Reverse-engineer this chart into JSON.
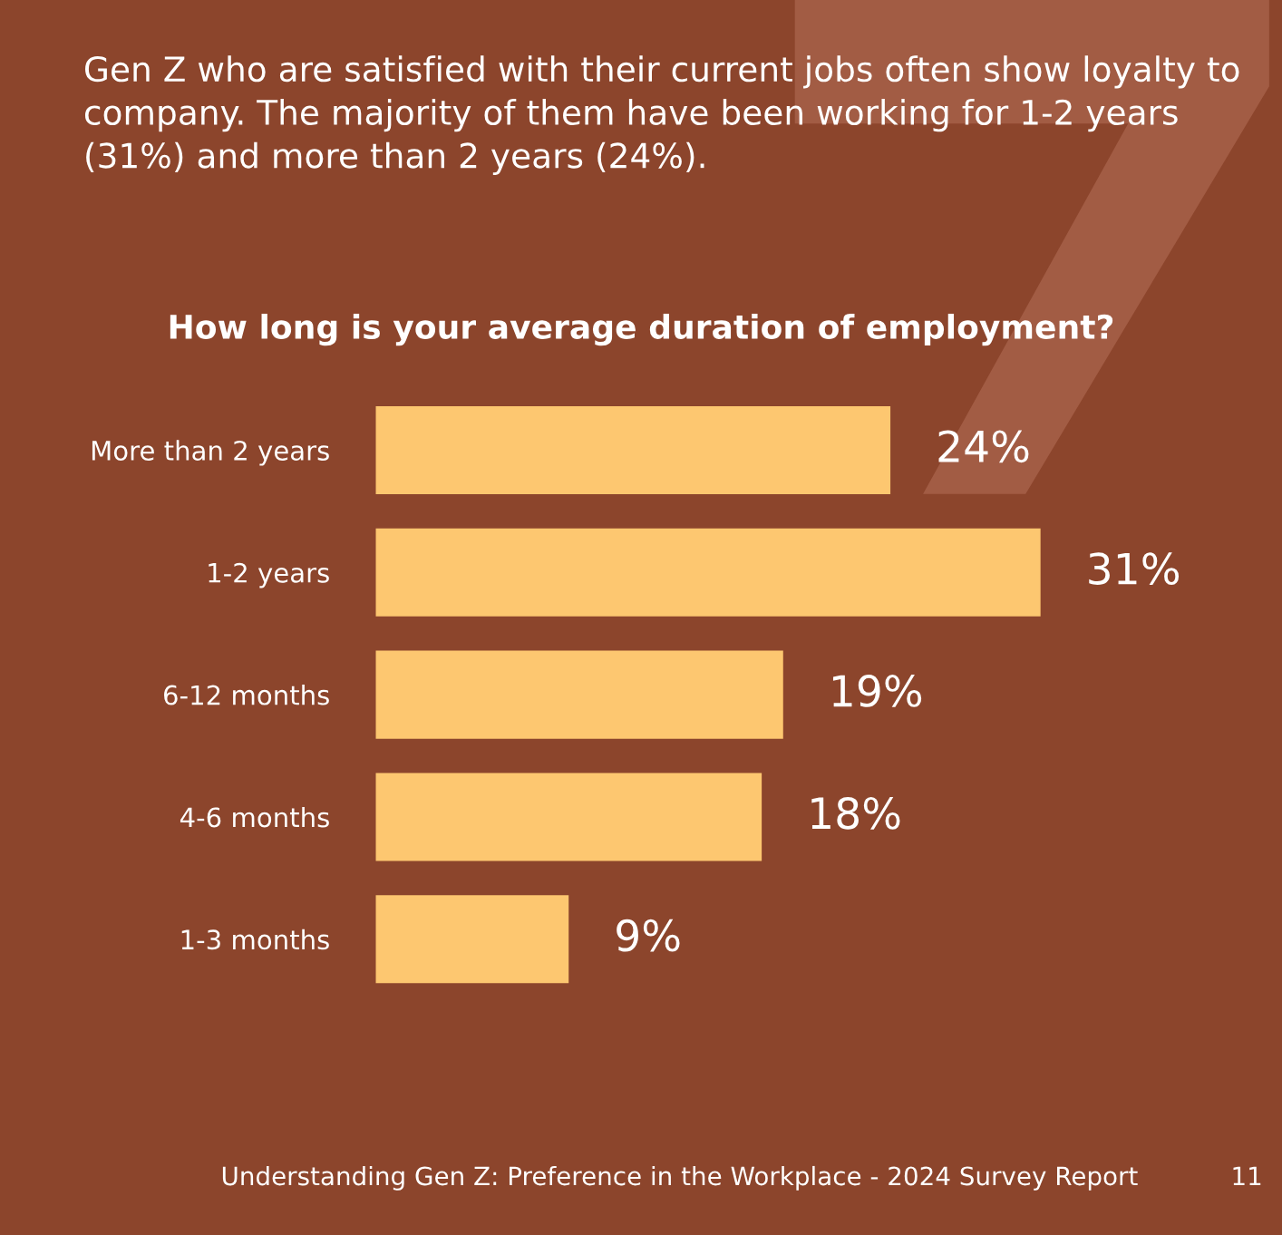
{
  "chart_data": {
    "type": "bar",
    "orientation": "horizontal",
    "title": "Gen Z who are satisfied with their current jobs often show loyalty to company. The majority of them have been working for 1-2 years (31%) and more than 2 years (24%).",
    "subtitle": "How long is your average duration of employment?",
    "categories": [
      "More than 2 years",
      "1-2 years",
      "6-12 months",
      "4-6 months",
      "1-3 months"
    ],
    "values": [
      24,
      31,
      19,
      18,
      9
    ],
    "value_labels": [
      "24%",
      "31%",
      "19%",
      "18%",
      "9%"
    ],
    "color": "#fdc770",
    "annotations": [
      "Understanding Gen Z: Preference in the Workplace - 2024 Survey Report",
      "11"
    ],
    "grid": false,
    "legend": false
  }
}
